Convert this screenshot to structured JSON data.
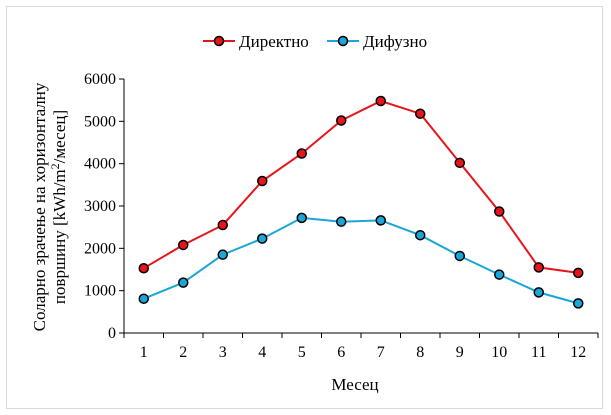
{
  "chart_data": {
    "type": "line",
    "title": "",
    "xlabel": "Месец",
    "ylabel_line1": "Соларно зрачење на хоризонталну",
    "ylabel_line2_prefix": "површину [kWh/m",
    "ylabel_line2_sup": "2",
    "ylabel_line2_suffix": "/месец]",
    "categories": [
      "1",
      "2",
      "3",
      "4",
      "5",
      "6",
      "7",
      "8",
      "9",
      "10",
      "11",
      "12"
    ],
    "ylim": [
      0,
      6000
    ],
    "yticks": [
      "0",
      "1000",
      "2000",
      "3000",
      "4000",
      "5000",
      "6000"
    ],
    "legend_position": "top-center",
    "grid": false,
    "series": [
      {
        "name": "Директно",
        "color": "#e8141c",
        "values": [
          1530,
          2080,
          2550,
          3590,
          4240,
          5020,
          5480,
          5180,
          4020,
          2870,
          1550,
          1420
        ]
      },
      {
        "name": "Дифузно",
        "color": "#1aa6d8",
        "values": [
          810,
          1190,
          1850,
          2230,
          2720,
          2630,
          2660,
          2310,
          1820,
          1380,
          960,
          700
        ]
      }
    ]
  }
}
